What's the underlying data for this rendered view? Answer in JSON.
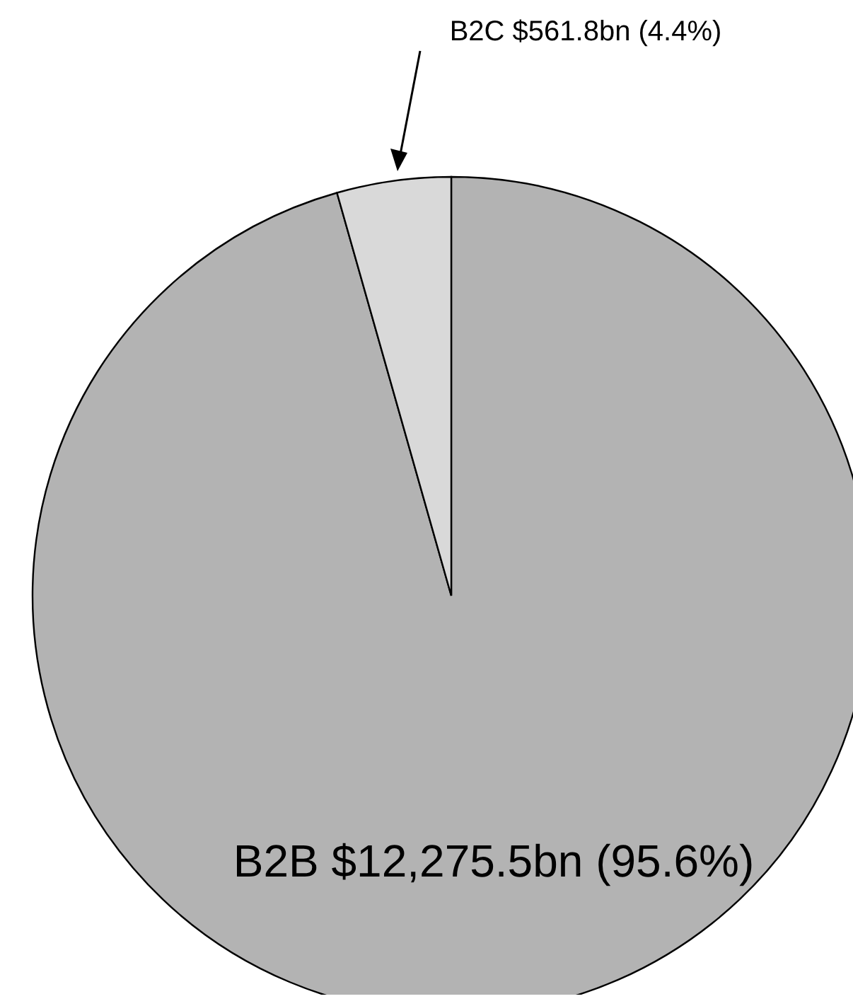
{
  "chart_data": {
    "type": "pie",
    "categories": [
      "B2B",
      "B2C"
    ],
    "values": [
      95.6,
      4.4
    ],
    "colors": [
      "#b3b3b3",
      "#d9d9d9"
    ],
    "value_labels": [
      "$12,275.5bn (95.6%)",
      "$561.8bn (4.4%)"
    ]
  }
}
